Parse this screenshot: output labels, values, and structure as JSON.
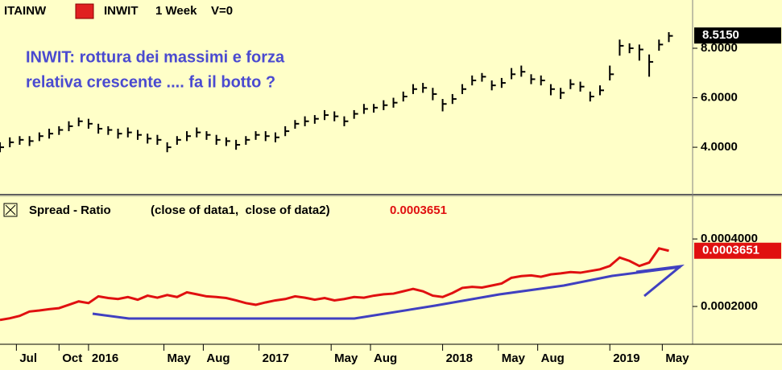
{
  "chart_data": [
    {
      "type": "hlc",
      "symbol": "ITAINW",
      "instrument": "INWIT",
      "interval": "1 Week",
      "volume_label": "V=0",
      "annotation": [
        "INWIT: rottura dei massimi e forza",
        "relativa crescente .... fa il botto ?"
      ],
      "x": [
        0,
        3,
        6,
        9,
        12,
        15,
        18,
        21,
        24,
        27,
        30,
        33,
        36,
        39,
        42,
        45,
        48,
        51,
        54,
        57,
        60,
        63,
        66,
        69,
        72,
        75,
        78,
        81,
        84,
        87,
        90,
        93,
        96,
        99,
        102,
        105,
        108,
        111,
        114,
        117,
        120,
        123,
        126,
        129,
        132,
        135,
        138,
        141,
        144,
        147,
        150,
        153,
        156,
        159,
        162,
        165,
        168,
        171,
        174,
        177,
        180,
        183,
        186,
        189,
        192,
        195,
        198,
        201,
        204
      ],
      "high": [
        4.2,
        4.4,
        4.45,
        4.45,
        4.6,
        4.75,
        4.85,
        5.05,
        5.2,
        5.15,
        4.95,
        4.85,
        4.75,
        4.8,
        4.7,
        4.55,
        4.5,
        4.2,
        4.45,
        4.65,
        4.8,
        4.65,
        4.5,
        4.4,
        4.3,
        4.45,
        4.65,
        4.65,
        4.6,
        4.85,
        5.1,
        5.25,
        5.3,
        5.5,
        5.45,
        5.25,
        5.5,
        5.75,
        5.75,
        5.9,
        6.0,
        6.25,
        6.55,
        6.6,
        6.4,
        5.95,
        6.15,
        6.55,
        6.9,
        7.0,
        6.7,
        6.8,
        7.2,
        7.3,
        6.95,
        6.9,
        6.55,
        6.4,
        6.75,
        6.65,
        6.25,
        6.5,
        7.3,
        8.35,
        8.2,
        8.15,
        7.75,
        8.35,
        8.65
      ],
      "low": [
        3.8,
        4.0,
        4.1,
        4.05,
        4.25,
        4.35,
        4.5,
        4.65,
        4.85,
        4.75,
        4.55,
        4.5,
        4.35,
        4.4,
        4.3,
        4.15,
        4.1,
        3.8,
        4.1,
        4.25,
        4.4,
        4.3,
        4.1,
        4.05,
        3.9,
        4.1,
        4.3,
        4.25,
        4.2,
        4.45,
        4.75,
        4.85,
        4.95,
        5.1,
        5.05,
        4.85,
        5.15,
        5.35,
        5.4,
        5.5,
        5.6,
        5.85,
        6.15,
        6.2,
        5.9,
        5.45,
        5.75,
        6.15,
        6.5,
        6.65,
        6.3,
        6.4,
        6.75,
        6.85,
        6.55,
        6.5,
        6.1,
        5.95,
        6.35,
        6.25,
        5.85,
        6.1,
        6.7,
        7.7,
        7.8,
        7.5,
        6.85,
        7.9,
        8.25
      ],
      "close": [
        4.0,
        4.2,
        4.3,
        4.25,
        4.45,
        4.55,
        4.7,
        4.85,
        5.05,
        4.95,
        4.75,
        4.7,
        4.55,
        4.6,
        4.5,
        4.35,
        4.3,
        4.0,
        4.3,
        4.45,
        4.6,
        4.5,
        4.3,
        4.25,
        4.1,
        4.3,
        4.5,
        4.45,
        4.4,
        4.65,
        4.95,
        5.05,
        5.15,
        5.3,
        5.25,
        5.05,
        5.35,
        5.55,
        5.6,
        5.7,
        5.8,
        6.05,
        6.35,
        6.4,
        6.15,
        5.75,
        5.95,
        6.35,
        6.7,
        6.85,
        6.5,
        6.6,
        6.95,
        7.05,
        6.75,
        6.7,
        6.35,
        6.2,
        6.55,
        6.45,
        6.05,
        6.3,
        6.95,
        8.1,
        8.0,
        7.95,
        7.45,
        8.15,
        8.5
      ],
      "color": "#000000",
      "xlim": [
        0,
        211
      ],
      "ylim": [
        2.15,
        9.95
      ],
      "yticks": [
        {
          "value": 4,
          "label": "4.0000"
        },
        {
          "value": 6,
          "label": "6.0000"
        },
        {
          "value": 8,
          "label": "8.0000"
        }
      ],
      "last_price": {
        "value": 8.515,
        "label": "8.5150"
      }
    },
    {
      "type": "line",
      "title": "Spread - Ratio",
      "inputs": "(close of data1,  close of data2)",
      "last_value": 0.0003651,
      "x": [
        0,
        3,
        6,
        9,
        12,
        15,
        18,
        21,
        24,
        27,
        30,
        33,
        36,
        39,
        42,
        45,
        48,
        51,
        54,
        57,
        60,
        63,
        66,
        69,
        72,
        75,
        78,
        81,
        84,
        87,
        90,
        93,
        96,
        99,
        102,
        105,
        108,
        111,
        114,
        117,
        120,
        123,
        126,
        129,
        132,
        135,
        138,
        141,
        144,
        147,
        150,
        153,
        156,
        159,
        162,
        165,
        168,
        171,
        174,
        177,
        180,
        183,
        186,
        189,
        192,
        195,
        198,
        201,
        204
      ],
      "values": [
        0.00016,
        0.000165,
        0.000172,
        0.000185,
        0.000188,
        0.000192,
        0.000195,
        0.000205,
        0.000215,
        0.00021,
        0.00023,
        0.000225,
        0.000222,
        0.000228,
        0.00022,
        0.000232,
        0.000226,
        0.000234,
        0.000228,
        0.000242,
        0.000236,
        0.00023,
        0.000228,
        0.000225,
        0.000218,
        0.00021,
        0.000205,
        0.000212,
        0.000218,
        0.000222,
        0.00023,
        0.000226,
        0.00022,
        0.000225,
        0.000218,
        0.000222,
        0.000228,
        0.000226,
        0.000232,
        0.000236,
        0.000238,
        0.000245,
        0.000252,
        0.000245,
        0.000232,
        0.000228,
        0.00024,
        0.000255,
        0.000258,
        0.000256,
        0.000262,
        0.000268,
        0.000285,
        0.00029,
        0.000292,
        0.000288,
        0.000295,
        0.000298,
        0.000302,
        0.0003,
        0.000305,
        0.00031,
        0.00032,
        0.000345,
        0.000335,
        0.00032,
        0.00033,
        0.000372,
        0.0003651
      ],
      "color": "#e01010",
      "xlim": [
        0,
        211
      ],
      "ylim": [
        8.8e-05,
        0.000517
      ],
      "yticks": [
        {
          "value": 0.0002,
          "label": "0.0002000"
        },
        {
          "value": 0.0004,
          "label": "0.0004000"
        }
      ],
      "xticks": [
        {
          "value": 5,
          "label": "Jul"
        },
        {
          "value": 18,
          "label": "Oct"
        },
        {
          "value": 27,
          "label": "2016"
        },
        {
          "value": 50,
          "label": "May"
        },
        {
          "value": 62,
          "label": "Aug"
        },
        {
          "value": 79,
          "label": "2017"
        },
        {
          "value": 101,
          "label": "May"
        },
        {
          "value": 113,
          "label": "Aug"
        },
        {
          "value": 135,
          "label": "2018"
        },
        {
          "value": 152,
          "label": "May"
        },
        {
          "value": 164,
          "label": "Aug"
        },
        {
          "value": 186,
          "label": "2019"
        },
        {
          "value": 202,
          "label": "May"
        }
      ]
    }
  ]
}
